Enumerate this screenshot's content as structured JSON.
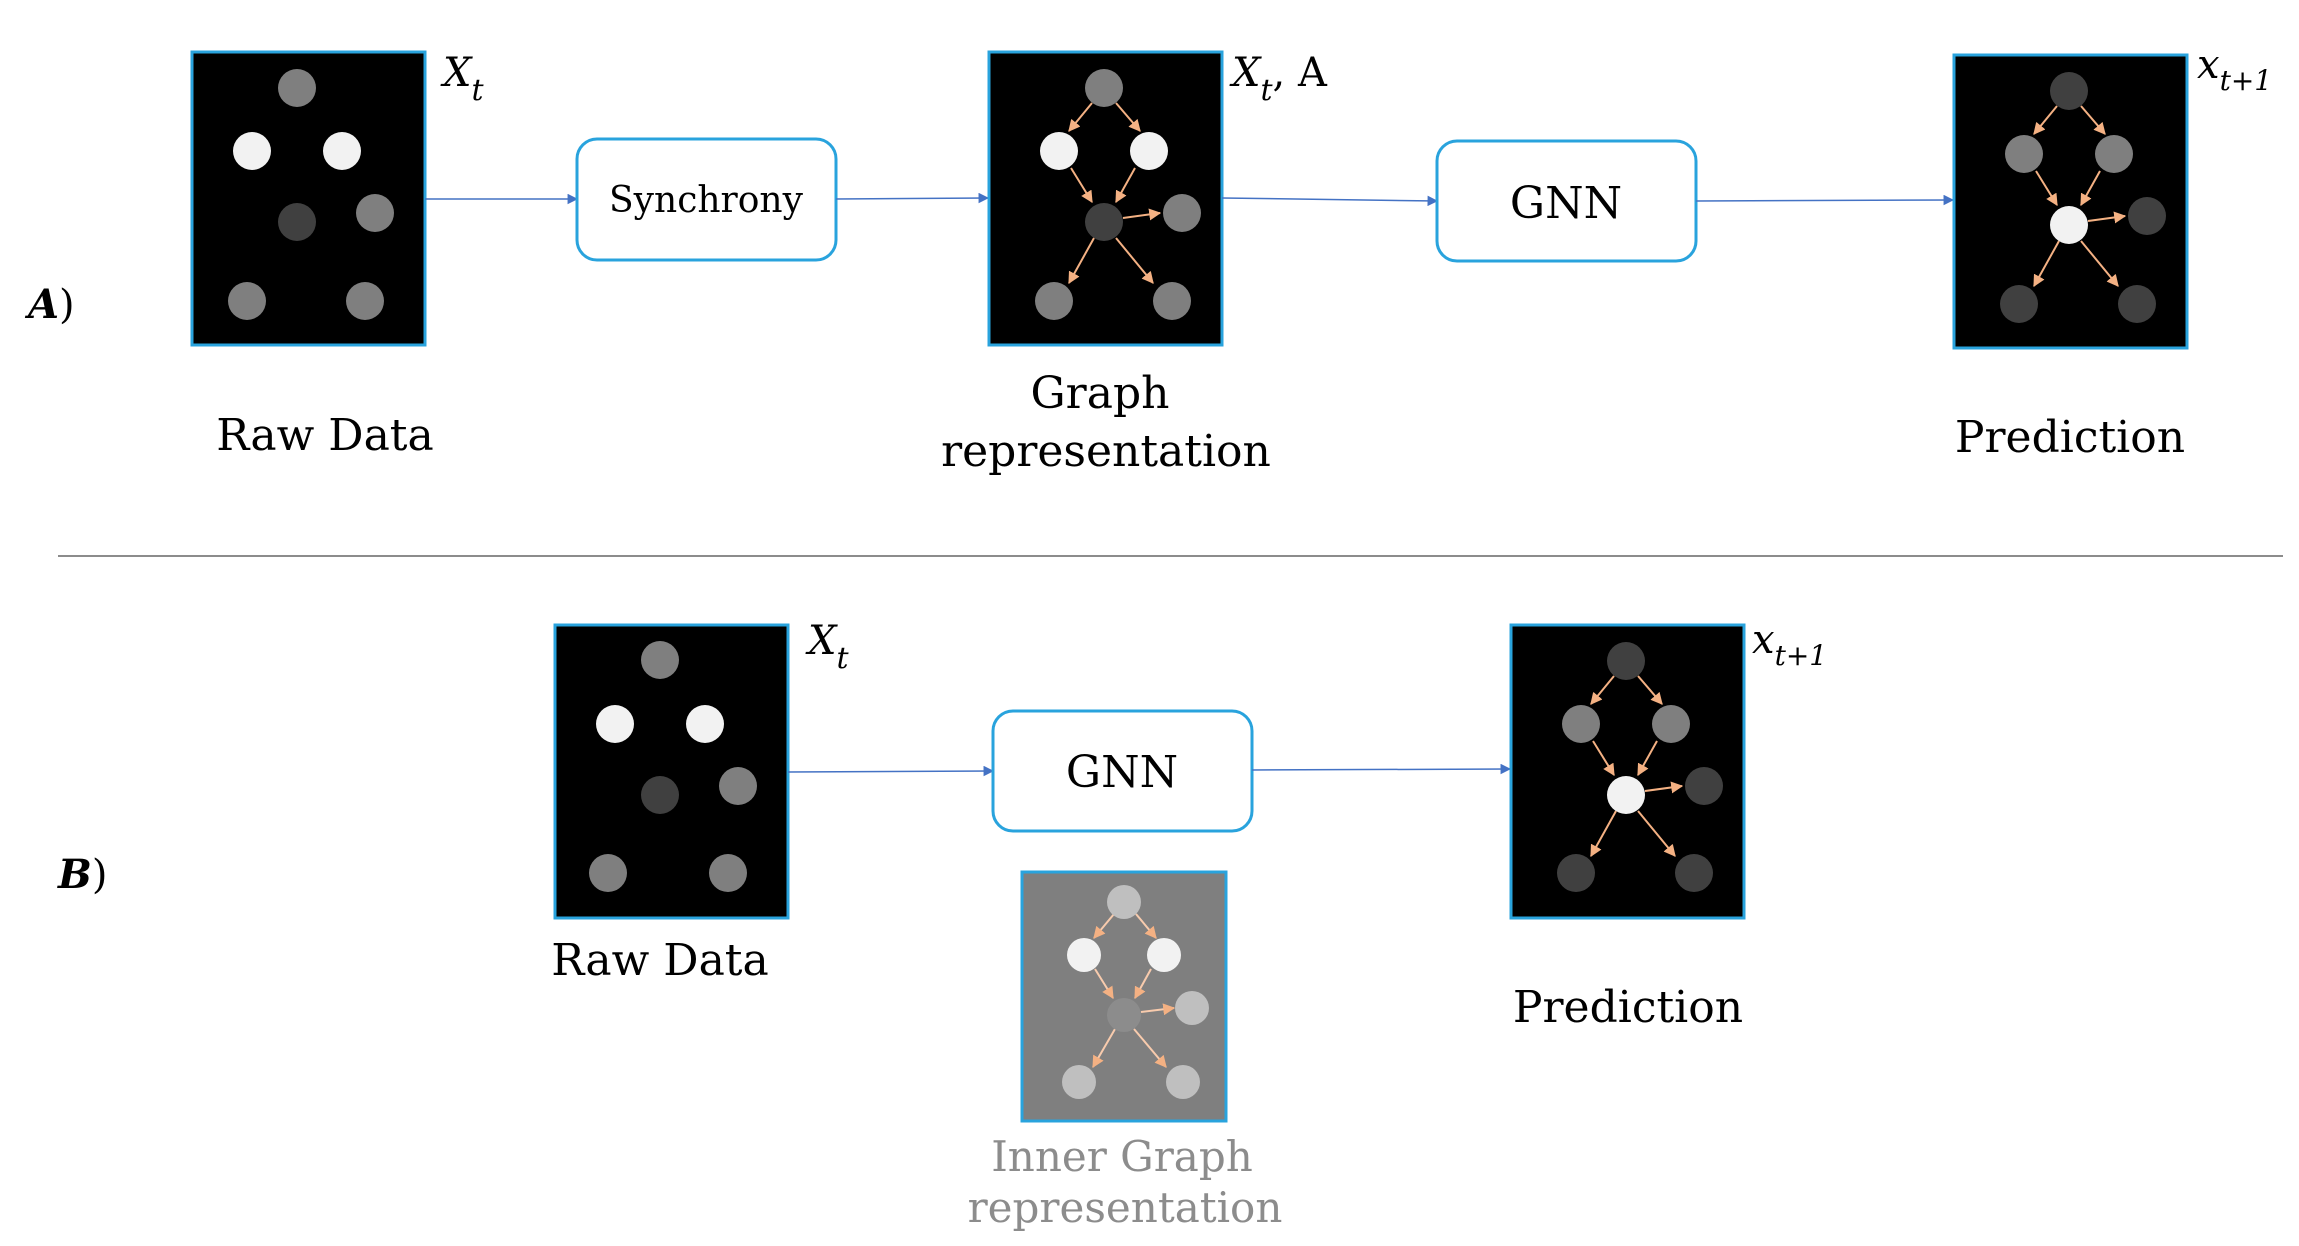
{
  "colors": {
    "frame_border": "#29a3dd",
    "panel_fill": "#000000",
    "inner_panel_fill": "#7f7f7f",
    "arrow": "#4472c4",
    "edge": "#f4b183",
    "box_border": "#29a3dd",
    "divider": "#8c8c8c",
    "faded_text": "#8c8c8c"
  },
  "row_a": {
    "tag": {
      "letter": "A",
      "suffix": ")"
    },
    "raw_data": {
      "label": "Raw Data",
      "symbol": {
        "base": "X",
        "sub": "t"
      }
    },
    "synchrony": {
      "label": "Synchrony"
    },
    "graph": {
      "label_line1": "Graph",
      "label_line2": "representation",
      "symbol": {
        "base": "X",
        "sub": "t",
        "extra": ", A"
      }
    },
    "gnn": {
      "label": "GNN"
    },
    "prediction": {
      "label": "Prediction",
      "symbol": {
        "base": "x",
        "sub": "t+1"
      }
    }
  },
  "row_b": {
    "tag": {
      "letter": "B",
      "suffix": ")"
    },
    "raw_data": {
      "label": "Raw Data",
      "symbol": {
        "base": "X",
        "sub": "t"
      }
    },
    "gnn": {
      "label": "GNN"
    },
    "inner_graph": {
      "label_line1": "Inner Graph",
      "label_line2": "representation"
    },
    "prediction": {
      "label": "Prediction",
      "symbol": {
        "base": "x",
        "sub": "t+1"
      }
    }
  }
}
